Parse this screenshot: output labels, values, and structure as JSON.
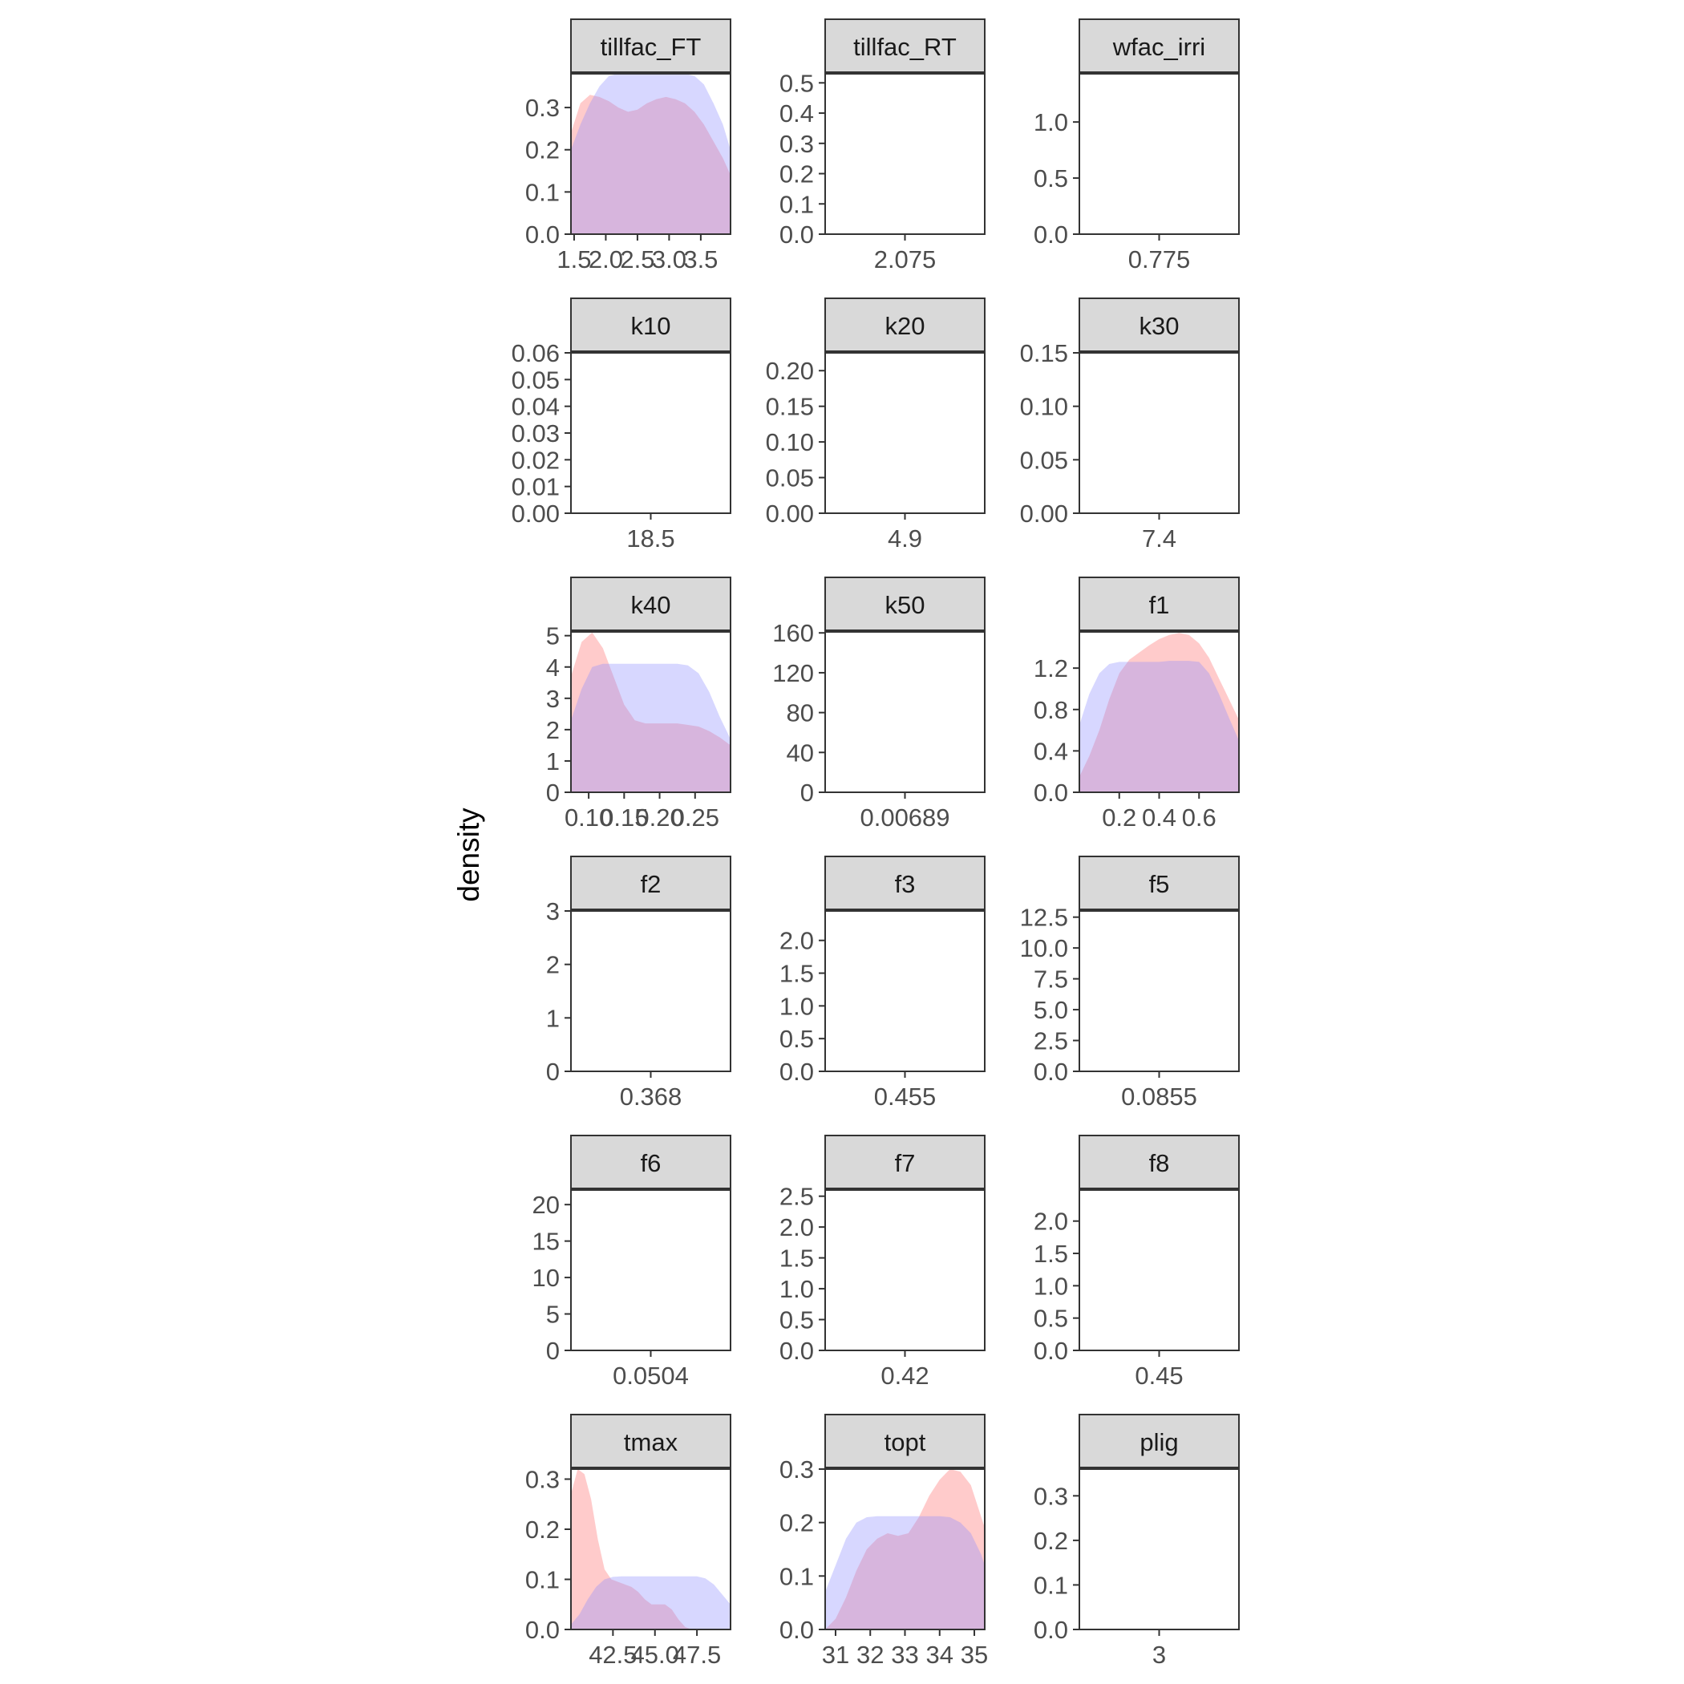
{
  "chart_data": {
    "type": "area",
    "ylabel": "density",
    "xlabel": "",
    "legend": "none",
    "grid": false,
    "colors": {
      "series_a": "#ff6b6b",
      "series_b": "#8c8cff",
      "strip_fill": "#d9d9d9",
      "panel_border": "#333333",
      "axis_text": "#4d4d4d"
    },
    "panels": [
      {
        "title": "tillfac_FT",
        "xlim": [
          1.45,
          3.97
        ],
        "ylim": [
          0,
          0.38
        ],
        "xticks": [
          1.5,
          2.0,
          2.5,
          3.0,
          3.5
        ],
        "xtick_labels": [
          "1.5",
          "2.0",
          "2.5",
          "3.0",
          "3.5"
        ],
        "yticks": [
          0,
          0.1,
          0.2,
          0.3
        ],
        "ytick_labels": [
          "0.0",
          "0.1",
          "0.2",
          "0.3"
        ],
        "series": [
          {
            "x": [
              1.45,
              1.6,
              1.75,
              1.9,
              2.05,
              2.2,
              2.35,
              2.5,
              2.65,
              2.8,
              2.95,
              3.1,
              3.25,
              3.4,
              3.55,
              3.7,
              3.85,
              3.97
            ],
            "y": [
              0.24,
              0.31,
              0.33,
              0.325,
              0.315,
              0.3,
              0.29,
              0.295,
              0.31,
              0.32,
              0.325,
              0.32,
              0.31,
              0.29,
              0.26,
              0.22,
              0.18,
              0.14
            ]
          },
          {
            "x": [
              1.45,
              1.6,
              1.75,
              1.9,
              2.05,
              2.2,
              2.35,
              2.5,
              2.65,
              2.8,
              2.95,
              3.1,
              3.25,
              3.4,
              3.55,
              3.7,
              3.85,
              3.97
            ],
            "y": [
              0.2,
              0.26,
              0.31,
              0.35,
              0.375,
              0.38,
              0.38,
              0.38,
              0.38,
              0.38,
              0.38,
              0.38,
              0.38,
              0.375,
              0.355,
              0.31,
              0.26,
              0.2
            ]
          }
        ]
      },
      {
        "title": "tillfac_RT",
        "xlim": [
          0,
          1
        ],
        "ylim": [
          0,
          0.53
        ],
        "xticks": [
          0.5
        ],
        "xtick_labels": [
          "2.075"
        ],
        "yticks": [
          0,
          0.1,
          0.2,
          0.3,
          0.4,
          0.5
        ],
        "ytick_labels": [
          "0.0",
          "0.1",
          "0.2",
          "0.3",
          "0.4",
          "0.5"
        ],
        "series": []
      },
      {
        "title": "wfac_irri",
        "xlim": [
          0,
          1
        ],
        "ylim": [
          0,
          1.43
        ],
        "xticks": [
          0.5
        ],
        "xtick_labels": [
          "0.775"
        ],
        "yticks": [
          0,
          0.5,
          1.0
        ],
        "ytick_labels": [
          "0.0",
          "0.5",
          "1.0"
        ],
        "series": []
      },
      {
        "title": "k10",
        "xlim": [
          0,
          1
        ],
        "ylim": [
          0,
          0.06
        ],
        "xticks": [
          0.5
        ],
        "xtick_labels": [
          "18.5"
        ],
        "yticks": [
          0,
          0.01,
          0.02,
          0.03,
          0.04,
          0.05,
          0.06
        ],
        "ytick_labels": [
          "0.00",
          "0.01",
          "0.02",
          "0.03",
          "0.04",
          "0.05",
          "0.06"
        ],
        "series": []
      },
      {
        "title": "k20",
        "xlim": [
          0,
          1
        ],
        "ylim": [
          0,
          0.225
        ],
        "xticks": [
          0.5
        ],
        "xtick_labels": [
          "4.9"
        ],
        "yticks": [
          0,
          0.05,
          0.1,
          0.15,
          0.2
        ],
        "ytick_labels": [
          "0.00",
          "0.05",
          "0.10",
          "0.15",
          "0.20"
        ],
        "series": []
      },
      {
        "title": "k30",
        "xlim": [
          0,
          1
        ],
        "ylim": [
          0,
          0.15
        ],
        "xticks": [
          0.5
        ],
        "xtick_labels": [
          "7.4"
        ],
        "yticks": [
          0,
          0.05,
          0.1,
          0.15
        ],
        "ytick_labels": [
          "0.00",
          "0.05",
          "0.10",
          "0.15"
        ],
        "series": []
      },
      {
        "title": "k40",
        "xlim": [
          0.075,
          0.3
        ],
        "ylim": [
          0,
          5.12
        ],
        "xticks": [
          0.1,
          0.15,
          0.2,
          0.25
        ],
        "xtick_labels": [
          "0.10",
          "0.15",
          "0.20",
          "0.25"
        ],
        "yticks": [
          0,
          1,
          2,
          3,
          4,
          5
        ],
        "ytick_labels": [
          "0",
          "1",
          "2",
          "3",
          "4",
          "5"
        ],
        "series": [
          {
            "x": [
              0.075,
              0.09,
              0.105,
              0.12,
              0.135,
              0.15,
              0.165,
              0.18,
              0.195,
              0.21,
              0.225,
              0.24,
              0.255,
              0.27,
              0.285,
              0.3
            ],
            "y": [
              3.7,
              4.8,
              5.1,
              4.6,
              3.7,
              2.8,
              2.3,
              2.2,
              2.2,
              2.2,
              2.2,
              2.15,
              2.1,
              1.95,
              1.75,
              1.5
            ]
          },
          {
            "x": [
              0.075,
              0.09,
              0.105,
              0.12,
              0.135,
              0.15,
              0.165,
              0.18,
              0.195,
              0.21,
              0.225,
              0.24,
              0.255,
              0.27,
              0.285,
              0.3
            ],
            "y": [
              2.3,
              3.3,
              4.0,
              4.1,
              4.1,
              4.1,
              4.1,
              4.1,
              4.1,
              4.1,
              4.1,
              4.05,
              3.8,
              3.2,
              2.4,
              1.7
            ]
          }
        ]
      },
      {
        "title": "k50",
        "xlim": [
          0,
          1
        ],
        "ylim": [
          0,
          161
        ],
        "xticks": [
          0.5
        ],
        "xtick_labels": [
          "0.00689"
        ],
        "yticks": [
          0,
          40,
          80,
          120,
          160
        ],
        "ytick_labels": [
          "0",
          "40",
          "80",
          "120",
          "160"
        ],
        "series": []
      },
      {
        "title": "f1",
        "xlim": [
          0.0,
          0.8
        ],
        "ylim": [
          0,
          1.55
        ],
        "xticks": [
          0.2,
          0.4,
          0.6
        ],
        "xtick_labels": [
          "0.2",
          "0.4",
          "0.6"
        ],
        "yticks": [
          0,
          0.4,
          0.8,
          1.2
        ],
        "ytick_labels": [
          "0.0",
          "0.4",
          "0.8",
          "1.2"
        ],
        "series": [
          {
            "x": [
              0.0,
              0.05,
              0.1,
              0.15,
              0.2,
              0.25,
              0.3,
              0.35,
              0.4,
              0.45,
              0.5,
              0.55,
              0.6,
              0.65,
              0.7,
              0.75,
              0.8
            ],
            "y": [
              0.15,
              0.35,
              0.6,
              0.9,
              1.15,
              1.28,
              1.35,
              1.42,
              1.48,
              1.52,
              1.54,
              1.52,
              1.44,
              1.3,
              1.1,
              0.9,
              0.7
            ]
          },
          {
            "x": [
              0.0,
              0.05,
              0.1,
              0.15,
              0.2,
              0.25,
              0.3,
              0.35,
              0.4,
              0.45,
              0.5,
              0.55,
              0.6,
              0.65,
              0.7,
              0.75,
              0.8
            ],
            "y": [
              0.65,
              0.95,
              1.15,
              1.24,
              1.26,
              1.26,
              1.26,
              1.26,
              1.26,
              1.27,
              1.27,
              1.27,
              1.26,
              1.15,
              0.95,
              0.72,
              0.5
            ]
          }
        ]
      },
      {
        "title": "f2",
        "xlim": [
          0,
          1
        ],
        "ylim": [
          0,
          3.0
        ],
        "xticks": [
          0.5
        ],
        "xtick_labels": [
          "0.368"
        ],
        "yticks": [
          0,
          1,
          2,
          3
        ],
        "ytick_labels": [
          "0",
          "1",
          "2",
          "3"
        ],
        "series": []
      },
      {
        "title": "f3",
        "xlim": [
          0,
          1
        ],
        "ylim": [
          0,
          2.45
        ],
        "xticks": [
          0.5
        ],
        "xtick_labels": [
          "0.455"
        ],
        "yticks": [
          0,
          0.5,
          1.0,
          1.5,
          2.0
        ],
        "ytick_labels": [
          "0.0",
          "0.5",
          "1.0",
          "1.5",
          "2.0"
        ],
        "series": []
      },
      {
        "title": "f5",
        "xlim": [
          0,
          1
        ],
        "ylim": [
          0,
          13.0
        ],
        "xticks": [
          0.5
        ],
        "xtick_labels": [
          "0.0855"
        ],
        "yticks": [
          0,
          2.5,
          5.0,
          7.5,
          10.0,
          12.5
        ],
        "ytick_labels": [
          "0.0",
          "2.5",
          "5.0",
          "7.5",
          "10.0",
          "12.5"
        ],
        "series": []
      },
      {
        "title": "f6",
        "xlim": [
          0,
          1
        ],
        "ylim": [
          0,
          22
        ],
        "xticks": [
          0.5
        ],
        "xtick_labels": [
          "0.0504"
        ],
        "yticks": [
          0,
          5,
          10,
          15,
          20
        ],
        "ytick_labels": [
          "0",
          "5",
          "10",
          "15",
          "20"
        ],
        "series": []
      },
      {
        "title": "f7",
        "xlim": [
          0,
          1
        ],
        "ylim": [
          0,
          2.6
        ],
        "xticks": [
          0.5
        ],
        "xtick_labels": [
          "0.42"
        ],
        "yticks": [
          0,
          0.5,
          1.0,
          1.5,
          2.0,
          2.5
        ],
        "ytick_labels": [
          "0.0",
          "0.5",
          "1.0",
          "1.5",
          "2.0",
          "2.5"
        ],
        "series": []
      },
      {
        "title": "f8",
        "xlim": [
          0,
          1
        ],
        "ylim": [
          0,
          2.48
        ],
        "xticks": [
          0.5
        ],
        "xtick_labels": [
          "0.45"
        ],
        "yticks": [
          0,
          0.5,
          1.0,
          1.5,
          2.0
        ],
        "ytick_labels": [
          "0.0",
          "0.5",
          "1.0",
          "1.5",
          "2.0"
        ],
        "series": []
      },
      {
        "title": "tmax",
        "xlim": [
          40.0,
          49.5
        ],
        "ylim": [
          0,
          0.32
        ],
        "xticks": [
          42.5,
          45.0,
          47.5
        ],
        "xtick_labels": [
          "42.5",
          "45.0",
          "47.5"
        ],
        "yticks": [
          0,
          0.1,
          0.2,
          0.3
        ],
        "ytick_labels": [
          "0.0",
          "0.1",
          "0.2",
          "0.3"
        ],
        "series": [
          {
            "x": [
              40.0,
              40.4,
              40.8,
              41.2,
              41.6,
              42.0,
              42.4,
              42.8,
              43.2,
              43.6,
              44.0,
              44.4,
              44.8,
              45.2,
              45.6,
              46.0,
              46.4,
              46.8,
              47.2
            ],
            "y": [
              0.27,
              0.32,
              0.31,
              0.26,
              0.18,
              0.12,
              0.1,
              0.095,
              0.09,
              0.085,
              0.075,
              0.06,
              0.05,
              0.05,
              0.05,
              0.04,
              0.02,
              0.005,
              0.0
            ]
          },
          {
            "x": [
              40.0,
              40.5,
              41.0,
              41.5,
              42.0,
              42.5,
              43.0,
              43.5,
              44.0,
              44.5,
              45.0,
              45.5,
              46.0,
              46.5,
              47.0,
              47.5,
              48.0,
              48.5,
              49.0,
              49.5
            ],
            "y": [
              0.01,
              0.03,
              0.06,
              0.085,
              0.1,
              0.105,
              0.106,
              0.106,
              0.106,
              0.106,
              0.106,
              0.106,
              0.106,
              0.106,
              0.106,
              0.106,
              0.102,
              0.09,
              0.07,
              0.05
            ]
          }
        ]
      },
      {
        "title": "topt",
        "xlim": [
          30.7,
          35.3
        ],
        "ylim": [
          0,
          0.3
        ],
        "xticks": [
          31,
          32,
          33,
          34,
          35
        ],
        "xtick_labels": [
          "31",
          "32",
          "33",
          "34",
          "35"
        ],
        "yticks": [
          0,
          0.1,
          0.2,
          0.3
        ],
        "ytick_labels": [
          "0.0",
          "0.1",
          "0.2",
          "0.3"
        ],
        "series": [
          {
            "x": [
              30.7,
              31.0,
              31.3,
              31.6,
              31.9,
              32.2,
              32.5,
              32.8,
              33.1,
              33.4,
              33.7,
              34.0,
              34.3,
              34.6,
              34.9,
              35.2,
              35.3
            ],
            "y": [
              0.0,
              0.02,
              0.06,
              0.11,
              0.15,
              0.17,
              0.18,
              0.175,
              0.18,
              0.21,
              0.25,
              0.28,
              0.3,
              0.295,
              0.27,
              0.21,
              0.19
            ]
          },
          {
            "x": [
              30.7,
              31.0,
              31.3,
              31.6,
              31.9,
              32.2,
              32.5,
              32.8,
              33.1,
              33.4,
              33.7,
              34.0,
              34.3,
              34.6,
              34.9,
              35.2,
              35.3
            ],
            "y": [
              0.07,
              0.12,
              0.17,
              0.2,
              0.21,
              0.212,
              0.212,
              0.212,
              0.212,
              0.212,
              0.212,
              0.212,
              0.21,
              0.2,
              0.18,
              0.14,
              0.12
            ]
          }
        ]
      },
      {
        "title": "plig",
        "xlim": [
          0,
          1
        ],
        "ylim": [
          0,
          0.36
        ],
        "xticks": [
          0.5
        ],
        "xtick_labels": [
          "3"
        ],
        "yticks": [
          0,
          0.1,
          0.2,
          0.3
        ],
        "ytick_labels": [
          "0.0",
          "0.1",
          "0.2",
          "0.3"
        ],
        "series": []
      }
    ]
  }
}
